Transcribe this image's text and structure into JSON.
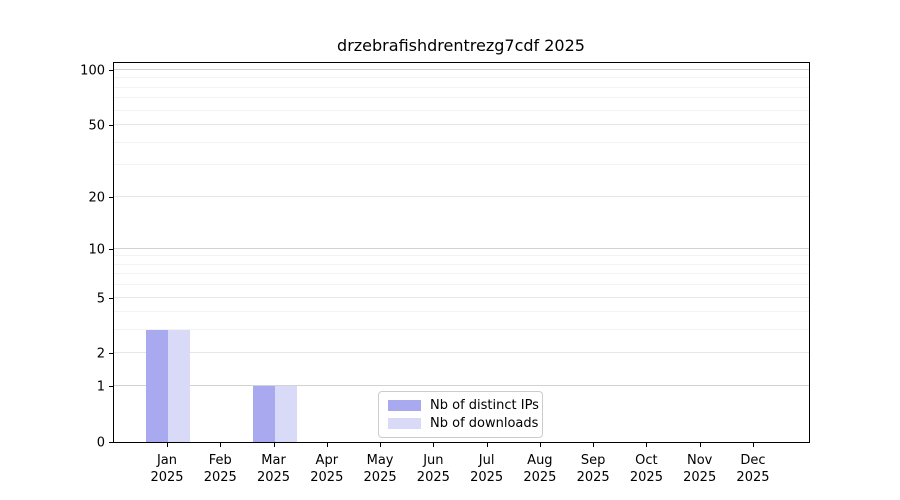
{
  "chart_data": {
    "type": "bar",
    "title": "drzebrafishdrentrezg7cdf 2025",
    "categories": [
      "Jan",
      "Feb",
      "Mar",
      "Apr",
      "May",
      "Jun",
      "Jul",
      "Aug",
      "Sep",
      "Oct",
      "Nov",
      "Dec"
    ],
    "year": "2025",
    "series": [
      {
        "name": "Nb of distinct IPs",
        "color": "#a9a9f0",
        "values": [
          3,
          0,
          1,
          0,
          0,
          0,
          0,
          0,
          0,
          0,
          0,
          0
        ]
      },
      {
        "name": "Nb of downloads",
        "color": "#d9d9f8",
        "values": [
          3,
          0,
          1,
          0,
          0,
          0,
          0,
          0,
          0,
          0,
          0,
          0
        ]
      }
    ],
    "yticks": [
      0,
      1,
      2,
      5,
      10,
      20,
      50,
      100
    ],
    "ylim": [
      0,
      112
    ],
    "yscale": "log10(1+y)",
    "grid": true,
    "legend_position": "lower center",
    "xlabel": "",
    "ylabel": ""
  }
}
